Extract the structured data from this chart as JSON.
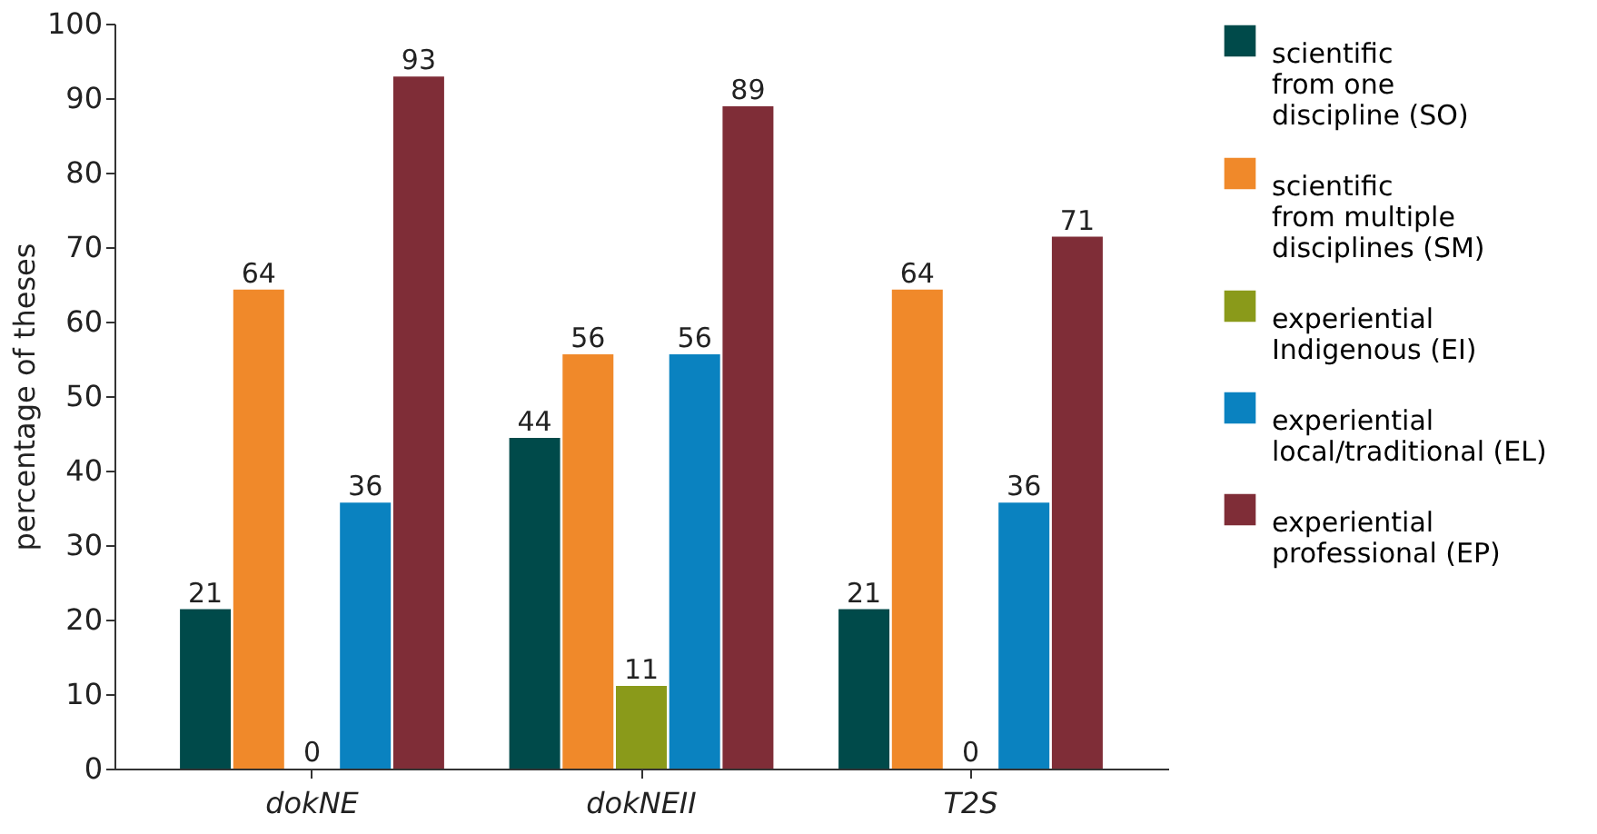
{
  "chart_data": {
    "type": "bar",
    "ylabel": "percentage of theses",
    "categories": [
      "dokNE",
      "dokNEII",
      "T2S"
    ],
    "series": [
      {
        "name": "scientific\nfrom one\ndiscipline (SO)",
        "color": "#004a4a",
        "values": [
          21.4,
          44.4,
          21.4
        ],
        "value_labels": [
          "21",
          "44",
          "21"
        ]
      },
      {
        "name": "scientific\nfrom multiple\ndisciplines (SM)",
        "color": "#f0892a",
        "values": [
          64.3,
          55.6,
          64.3
        ],
        "value_labels": [
          "64",
          "56",
          "64"
        ]
      },
      {
        "name": "experiential\nIndigenous (EI)",
        "color": "#8a9a1a",
        "values": [
          0,
          11.1,
          0
        ],
        "value_labels": [
          "0",
          "11",
          "0"
        ]
      },
      {
        "name": "experiential\nlocal/traditional (EL)",
        "color": "#0a82c0",
        "values": [
          35.7,
          55.6,
          35.7
        ],
        "value_labels": [
          "36",
          "56",
          "36"
        ]
      },
      {
        "name": "experiential\nprofessional (EP)",
        "color": "#7f2d37",
        "values": [
          92.9,
          88.9,
          71.4
        ],
        "value_labels": [
          "93",
          "89",
          "71"
        ]
      }
    ],
    "ylim": [
      0,
      100
    ],
    "yticks": [
      0,
      10,
      20,
      30,
      40,
      50,
      60,
      70,
      80,
      90,
      100
    ],
    "grid": false,
    "legend": "right"
  }
}
